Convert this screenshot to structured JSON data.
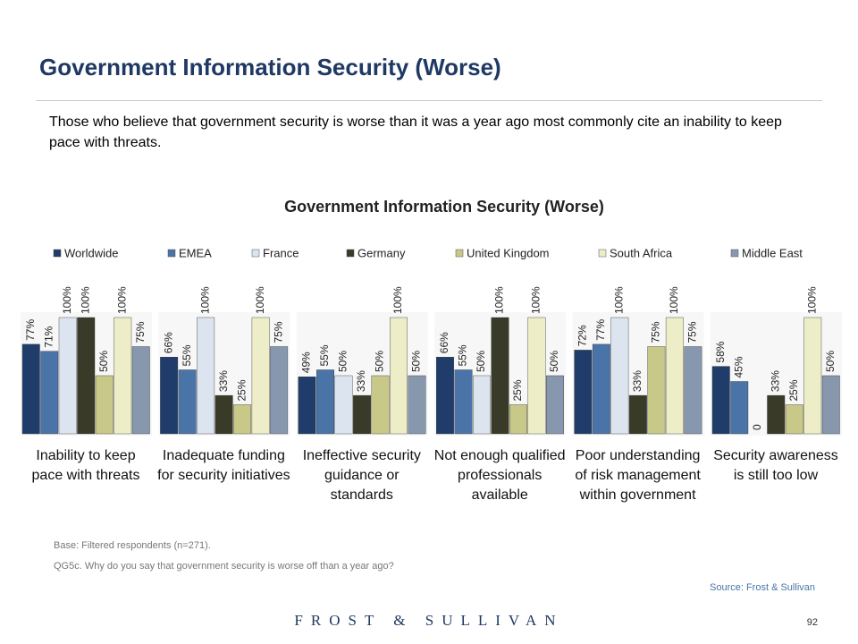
{
  "header": {
    "title": "Government Information Security (Worse)",
    "subtitle": "Those who believe that government security is worse than it was a year ago most commonly cite an inability to keep pace with threats."
  },
  "chart_data": {
    "type": "bar",
    "title": "Government Information Security (Worse)",
    "categories": [
      "Inability to keep pace with threats",
      "Inadequate funding for security initiatives",
      "Ineffective security guidance or standards",
      "Not enough qualified professionals available",
      "Poor understanding of risk management within government",
      "Security awareness is still too low"
    ],
    "ylim": [
      0,
      100
    ],
    "series": [
      {
        "name": "Worldwide",
        "color": "#1f3c6b",
        "values": [
          77,
          66,
          49,
          66,
          72,
          58
        ],
        "value_labels": [
          "77%",
          "66%",
          "49%",
          "66%",
          "72%",
          "58%"
        ]
      },
      {
        "name": "EMEA",
        "color": "#4a74a8",
        "values": [
          71,
          55,
          55,
          55,
          77,
          45
        ],
        "value_labels": [
          "71%",
          "55%",
          "55%",
          "55%",
          "77%",
          "45%"
        ]
      },
      {
        "name": "France",
        "color": "#dce5ef",
        "values": [
          100,
          100,
          50,
          50,
          100,
          0
        ],
        "value_labels": [
          "100%",
          "100%",
          "50%",
          "50%",
          "100%",
          "0"
        ]
      },
      {
        "name": "Germany",
        "color": "#3a3a28",
        "values": [
          100,
          33,
          33,
          100,
          33,
          33
        ],
        "value_labels": [
          "100%",
          "33%",
          "33%",
          "100%",
          "33%",
          "33%"
        ]
      },
      {
        "name": "United Kingdom",
        "color": "#c8c888",
        "values": [
          50,
          25,
          50,
          25,
          75,
          25
        ],
        "value_labels": [
          "50%",
          "25%",
          "50%",
          "25%",
          "75%",
          "25%"
        ]
      },
      {
        "name": "South Africa",
        "color": "#ededc8",
        "values": [
          100,
          100,
          100,
          100,
          100,
          100
        ],
        "value_labels": [
          "100%",
          "100%",
          "100%",
          "100%",
          "100%",
          "100%"
        ]
      },
      {
        "name": "Middle East",
        "color": "#8798ae",
        "values": [
          75,
          75,
          50,
          50,
          75,
          50
        ],
        "value_labels": [
          "75%",
          "75%",
          "50%",
          "50%",
          "75%",
          "50%"
        ]
      }
    ]
  },
  "footer": {
    "base": "Base: Filtered respondents (n=271).",
    "question": "QG5c. Why do you say that government security is worse off than a year ago?",
    "source": "Source: Frost & Sullivan",
    "logo": "FROST & SULLIVAN",
    "page": "92"
  }
}
